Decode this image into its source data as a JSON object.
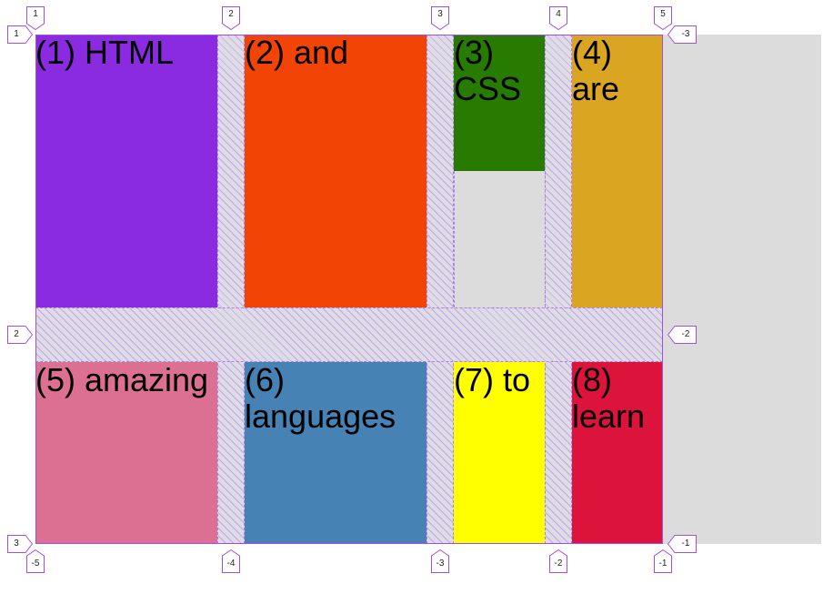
{
  "colors": {
    "grid_line": "#a14de0",
    "container_background": "#dcdcdc",
    "gap_hatch": "#b27be8"
  },
  "items": [
    {
      "label": "(1) HTML",
      "color": "#8a2be2"
    },
    {
      "label": "(2) and",
      "color": "#f24405"
    },
    {
      "label": "(3) CSS",
      "color": "#277b00"
    },
    {
      "label": "(4) are",
      "color": "#daa520"
    },
    {
      "label": "(5) amazing",
      "color": "#db7093"
    },
    {
      "label": "(6) languages",
      "color": "#4682b4"
    },
    {
      "label": "(7) to",
      "color": "#ffff00"
    },
    {
      "label": "(8) learn",
      "color": "#dc143c"
    }
  ],
  "grid_overlay": {
    "column_numbers_top": [
      "1",
      "2",
      "3",
      "4",
      "5"
    ],
    "column_numbers_bottom": [
      "-5",
      "-4",
      "-3",
      "-2",
      "-1"
    ],
    "row_numbers_left": [
      "1",
      "2",
      "3"
    ],
    "row_numbers_right": [
      "-3",
      "-2",
      "-1"
    ]
  }
}
